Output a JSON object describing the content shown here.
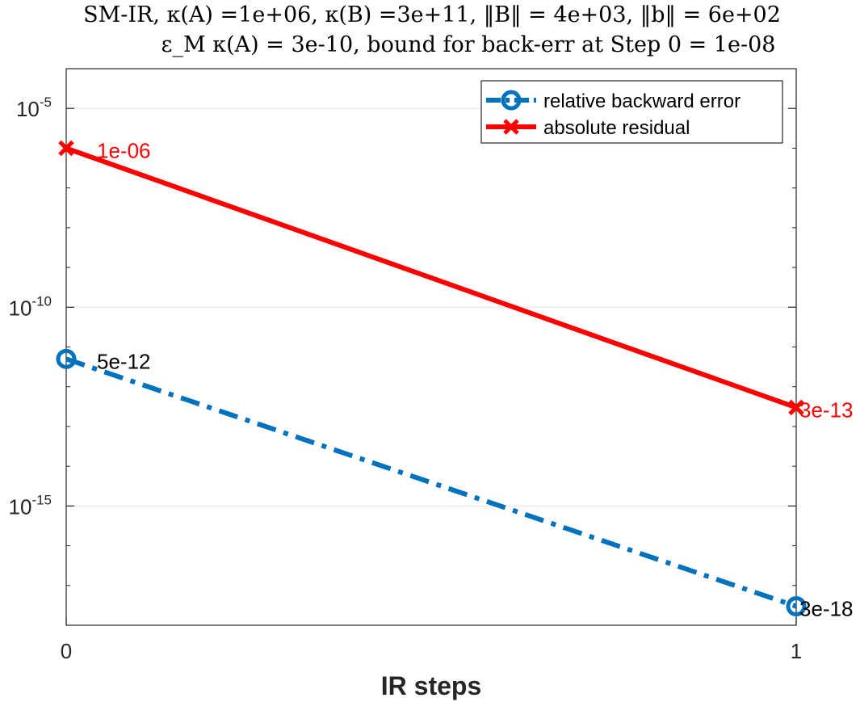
{
  "chart_data": {
    "type": "line",
    "title_lines": [
      "SM-IR, κ(A) =1e+06, κ(B) =3e+11, ‖B‖ = 4e+03, ‖b‖ = 6e+02",
      "ε_M κ(A) = 3e-10, bound for back-err at Step 0 = 1e-08"
    ],
    "xlabel": "IR steps",
    "ylabel": "",
    "x": [
      0,
      1
    ],
    "x_ticks": [
      "0",
      "1"
    ],
    "xlim": [
      0,
      1
    ],
    "y_scale": "log",
    "ylim": [
      1e-18,
      0.0001
    ],
    "y_ticks": [
      {
        "base": "10",
        "exp": "-5",
        "value": 1e-05
      },
      {
        "base": "10",
        "exp": "-10",
        "value": 1e-10
      },
      {
        "base": "10",
        "exp": "-15",
        "value": 1e-15
      }
    ],
    "grid": true,
    "legend_position": "top-right",
    "series": [
      {
        "name": "relative backward error",
        "color": "#0072BD",
        "line_style": "dash-dot",
        "marker": "circle",
        "values": [
          5e-12,
          3e-18
        ],
        "labels": [
          "5e-12",
          "3e-18"
        ],
        "label_color": "#000000"
      },
      {
        "name": "absolute residual",
        "color": "#FF0000",
        "line_style": "solid",
        "marker": "x",
        "values": [
          1e-06,
          3e-13
        ],
        "labels": [
          "1e-06",
          "3e-13"
        ],
        "label_color": "#FF0000"
      }
    ]
  }
}
